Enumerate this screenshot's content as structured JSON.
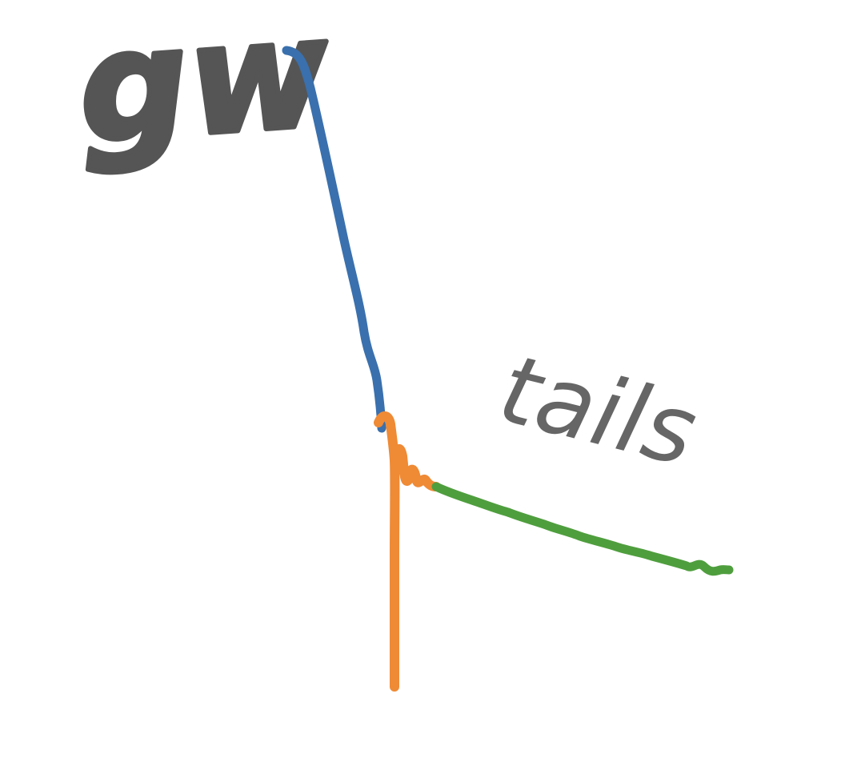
{
  "logo": {
    "title": "gw",
    "tagline": "tails",
    "colors": {
      "title": "#555555",
      "tagline": "#666666",
      "segment_1": "#3a70ad",
      "segment_2": "#ef8a35",
      "segment_3": "#4f9e3e",
      "background": "#ffffff"
    }
  }
}
